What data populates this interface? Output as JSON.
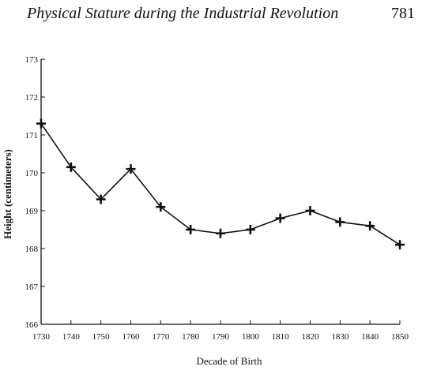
{
  "page_header": {
    "running_title": "Physical Stature during the Industrial Revolution",
    "page_number": "781"
  },
  "chart_data": {
    "type": "line",
    "title": "",
    "xlabel": "Decade of Birth",
    "ylabel": "Height (centimeters)",
    "x": [
      1730,
      1740,
      1750,
      1760,
      1770,
      1780,
      1790,
      1800,
      1810,
      1820,
      1830,
      1840,
      1850
    ],
    "series": [
      {
        "values": [
          171.3,
          170.15,
          169.3,
          170.1,
          169.1,
          168.5,
          168.4,
          168.5,
          168.8,
          169.0,
          168.7,
          168.6,
          168.1
        ]
      }
    ],
    "xlim": [
      1730,
      1850
    ],
    "ylim": [
      166,
      173
    ],
    "x_ticks": [
      "1730",
      "1740",
      "1750",
      "1760",
      "1770",
      "1780",
      "1790",
      "1800",
      "1810",
      "1820",
      "1830",
      "1840",
      "1850"
    ],
    "y_ticks": [
      "166",
      "167",
      "168",
      "169",
      "170",
      "171",
      "172",
      "173"
    ],
    "marker": "plus",
    "grid": false,
    "legend": "none",
    "line_color": "#111111"
  }
}
